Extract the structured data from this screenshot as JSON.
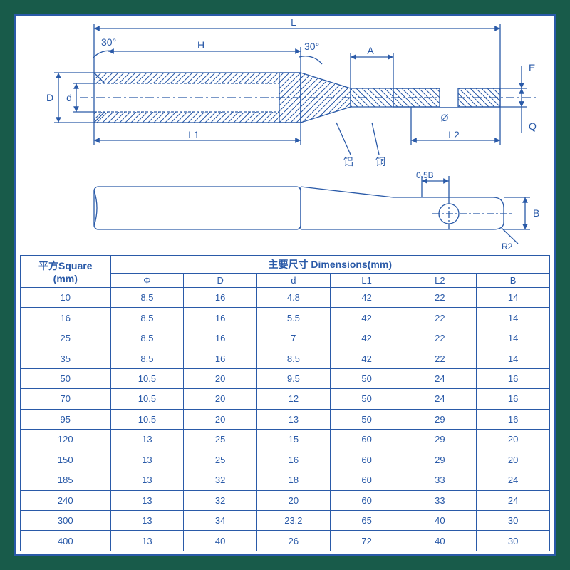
{
  "colors": {
    "frame": "#185b4a",
    "line": "#2a5aa8",
    "hatch": "#2a5aa8",
    "bg": "#ffffff"
  },
  "diagram": {
    "type": "engineering-drawing",
    "labels": {
      "L": "L",
      "H": "H",
      "A": "A",
      "E": "E",
      "D": "D",
      "d": "d",
      "L1": "L1",
      "L2": "L2",
      "Q": "Q",
      "phi": "Ø",
      "ang1": "30°",
      "ang2": "30°",
      "al": "铝",
      "cu": "铜",
      "half_b": "0.5B",
      "B": "B",
      "R2": "R2"
    },
    "line_color": "#2a5aa8",
    "line_width": 1.3,
    "font_size": 14
  },
  "table": {
    "header_square": "平方Square",
    "header_square_unit": "(mm)",
    "header_dims": "主要尺寸 Dimensions(mm)",
    "columns": [
      "Φ",
      "D",
      "d",
      "L1",
      "L2",
      "B"
    ],
    "rows": [
      {
        "sq": "10",
        "phi": "8.5",
        "D": "16",
        "d": "4.8",
        "L1": "42",
        "L2": "22",
        "B": "14"
      },
      {
        "sq": "16",
        "phi": "8.5",
        "D": "16",
        "d": "5.5",
        "L1": "42",
        "L2": "22",
        "B": "14"
      },
      {
        "sq": "25",
        "phi": "8.5",
        "D": "16",
        "d": "7",
        "L1": "42",
        "L2": "22",
        "B": "14"
      },
      {
        "sq": "35",
        "phi": "8.5",
        "D": "16",
        "d": "8.5",
        "L1": "42",
        "L2": "22",
        "B": "14"
      },
      {
        "sq": "50",
        "phi": "10.5",
        "D": "20",
        "d": "9.5",
        "L1": "50",
        "L2": "24",
        "B": "16"
      },
      {
        "sq": "70",
        "phi": "10.5",
        "D": "20",
        "d": "12",
        "L1": "50",
        "L2": "24",
        "B": "16"
      },
      {
        "sq": "95",
        "phi": "10.5",
        "D": "20",
        "d": "13",
        "L1": "50",
        "L2": "29",
        "B": "16"
      },
      {
        "sq": "120",
        "phi": "13",
        "D": "25",
        "d": "15",
        "L1": "60",
        "L2": "29",
        "B": "20"
      },
      {
        "sq": "150",
        "phi": "13",
        "D": "25",
        "d": "16",
        "L1": "60",
        "L2": "29",
        "B": "20"
      },
      {
        "sq": "185",
        "phi": "13",
        "D": "32",
        "d": "18",
        "L1": "60",
        "L2": "33",
        "B": "24"
      },
      {
        "sq": "240",
        "phi": "13",
        "D": "32",
        "d": "20",
        "L1": "60",
        "L2": "33",
        "B": "24"
      },
      {
        "sq": "300",
        "phi": "13",
        "D": "34",
        "d": "23.2",
        "L1": "65",
        "L2": "40",
        "B": "30"
      },
      {
        "sq": "400",
        "phi": "13",
        "D": "40",
        "d": "26",
        "L1": "72",
        "L2": "40",
        "B": "30"
      }
    ],
    "border_color": "#2a5aa8",
    "font_size": 13,
    "header_font_size": 14,
    "text_color": "#2a5aa8"
  }
}
